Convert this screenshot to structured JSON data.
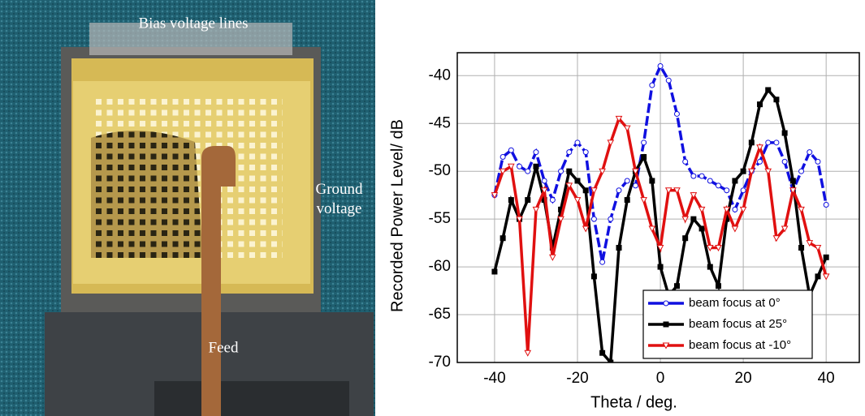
{
  "photo": {
    "labels": {
      "top": "Bias voltage lines",
      "right": "Ground voltage",
      "bottom": "Feed"
    }
  },
  "chart_data": {
    "type": "line",
    "x_label": "Theta / deg.",
    "y_label": "Recorded Power Level/ dB",
    "x": [
      -40,
      -38,
      -36,
      -34,
      -32,
      -30,
      -28,
      -26,
      -24,
      -22,
      -20,
      -18,
      -16,
      -14,
      -12,
      -10,
      -8,
      -6,
      -4,
      -2,
      0,
      2,
      4,
      6,
      8,
      10,
      12,
      14,
      16,
      18,
      20,
      22,
      24,
      26,
      28,
      30,
      32,
      34,
      36,
      38,
      40
    ],
    "series": [
      {
        "name": "beam focus at 0°",
        "color": "#1010e0",
        "marker": "circle",
        "values": [
          -52.5,
          -48.5,
          -47.8,
          -49.5,
          -50,
          -48,
          -51,
          -53,
          -50,
          -48,
          -47,
          -48,
          -55,
          -59.5,
          -55,
          -52,
          -51,
          -51.5,
          -47,
          -41,
          -39,
          -40.5,
          -44,
          -49,
          -50.5,
          -50.5,
          -51,
          -51.5,
          -52,
          -54,
          -52,
          -50,
          -49,
          -47,
          -47,
          -49,
          -52,
          -50,
          -48,
          -49,
          -53.5
        ]
      },
      {
        "name": "beam focus at 25°",
        "color": "#000000",
        "marker": "square",
        "values": [
          -60.5,
          -57,
          -53,
          -55,
          -53,
          -49.5,
          -53,
          -58,
          -54,
          -50,
          -51,
          -52,
          -61,
          -69,
          -70,
          -58,
          -53,
          -50,
          -48.5,
          -51,
          -60,
          -63,
          -62,
          -57,
          -55,
          -56,
          -60,
          -62,
          -55,
          -51,
          -50,
          -47,
          -43,
          -41.5,
          -42.5,
          -46,
          -51,
          -58,
          -63,
          -61,
          -59
        ]
      },
      {
        "name": "beam focus at -10°",
        "color": "#e01010",
        "marker": "triangle",
        "values": [
          -52.5,
          -50,
          -49.5,
          -55,
          -69,
          -54,
          -52,
          -59,
          -55,
          -51.5,
          -53,
          -56,
          -52,
          -50,
          -47,
          -44.5,
          -45.5,
          -50,
          -53,
          -56,
          -58,
          -52,
          -52,
          -55,
          -52.5,
          -54,
          -58,
          -58,
          -54,
          -56,
          -54,
          -50,
          -47.5,
          -50,
          -57,
          -56,
          -52,
          -54,
          -57.5,
          -58,
          -61
        ]
      }
    ],
    "xlim": [
      -49,
      48
    ],
    "xticks": [
      -40,
      -20,
      0,
      20,
      40
    ],
    "ylim": [
      -70,
      -37.6
    ],
    "yticks": [
      -40,
      -45,
      -50,
      -55,
      -60,
      -65,
      -70
    ],
    "grid": true,
    "legend": "lower right"
  }
}
